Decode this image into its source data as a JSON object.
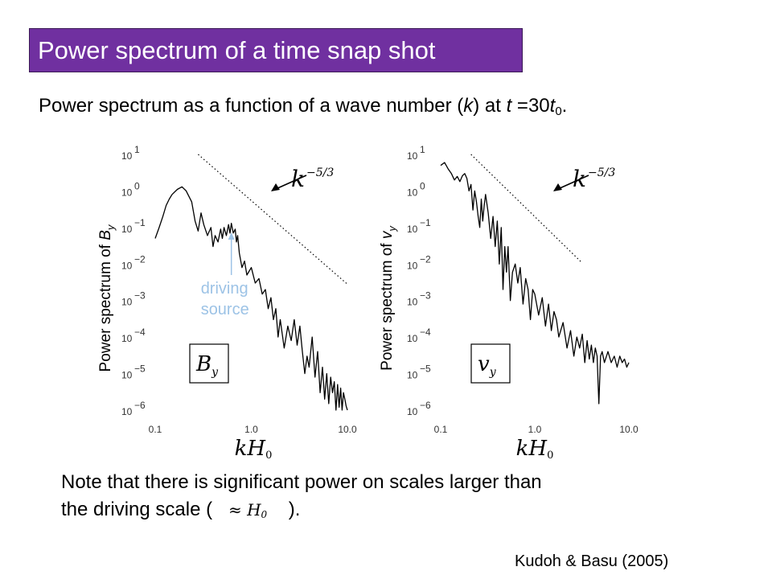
{
  "slide": {
    "title": "Power spectrum of a time snap shot",
    "subtitle": {
      "prefix": "Power spectrum as a function of a wave number (",
      "k": "k",
      "middle": ") at ",
      "t": "t",
      "eq": " =30",
      "t0": "t",
      "t0_sub": "0",
      "suffix": "."
    },
    "note": {
      "line1": "Note that there is significant power on scales larger than",
      "line2_prefix": "the driving scale (",
      "approx_symbol": "≈ H",
      "approx_sub": "0",
      "line2_suffix": " )."
    },
    "credit": "Kudoh & Basu (2005)"
  },
  "colors": {
    "title_bg": "#7030a0",
    "annotation": "#9dc3e6",
    "line": "#000000"
  },
  "chart_data": [
    {
      "type": "line",
      "xlabel": "kH0",
      "ylabel": "Power spectrum of B_y",
      "ylabel_main": "Power spectrum of ",
      "ylabel_var": "B",
      "ylabel_sub": "y",
      "x_scale": "log",
      "y_scale": "log",
      "xlim": [
        0.1,
        10
      ],
      "ylim": [
        1e-06,
        10
      ],
      "x_tick_labels": [
        "0.1",
        "1.0",
        "10.0"
      ],
      "y_tick_exponents": [
        "1",
        "0",
        "−1",
        "−2",
        "−3",
        "−4",
        "−5",
        "−6"
      ],
      "y_tick_base": "10",
      "slope_label": "k",
      "slope_exponent": "−5/3",
      "panel_label": "B",
      "panel_label_sub": "y",
      "annotation": {
        "text_line1": "driving",
        "text_line2": "source",
        "x": 0.62
      },
      "reference_line": {
        "slope": -1.6667,
        "x": [
          0.28,
          10
        ],
        "y": [
          10,
          0.0028
        ]
      },
      "series": [
        {
          "x": [
            0.1,
            0.11,
            0.12,
            0.13,
            0.14,
            0.15,
            0.17,
            0.19,
            0.21,
            0.24,
            0.26,
            0.28,
            0.3,
            0.32,
            0.35,
            0.38,
            0.4,
            0.42,
            0.45,
            0.48,
            0.5,
            0.52,
            0.55,
            0.58,
            0.6,
            0.62,
            0.65,
            0.68,
            0.7,
            0.72,
            0.75,
            0.8,
            0.85,
            0.9,
            1.0,
            1.1,
            1.2,
            1.3,
            1.4,
            1.5,
            1.6,
            1.7,
            1.8,
            1.9,
            2.0,
            2.2,
            2.4,
            2.6,
            2.8,
            3.0,
            3.2,
            3.4,
            3.6,
            3.8,
            4.0,
            4.3,
            4.6,
            4.9,
            5.2,
            5.5,
            5.8,
            6.1,
            6.4,
            6.7,
            7.0,
            7.3,
            7.6,
            7.9,
            8.2,
            8.5,
            8.8,
            9.1,
            9.4,
            9.7,
            10.0
          ],
          "y": [
            0.05,
            0.1,
            0.2,
            0.4,
            0.6,
            0.8,
            1.1,
            1.3,
            1.0,
            0.5,
            0.15,
            0.08,
            0.25,
            0.12,
            0.06,
            0.1,
            0.03,
            0.06,
            0.04,
            0.09,
            0.05,
            0.1,
            0.06,
            0.12,
            0.07,
            0.13,
            0.07,
            0.09,
            0.04,
            0.06,
            0.02,
            0.008,
            0.012,
            0.005,
            0.008,
            0.003,
            0.004,
            0.0015,
            0.002,
            0.0006,
            0.0012,
            0.0003,
            0.0006,
            0.0001,
            0.0003,
            5e-05,
            0.0002,
            8e-05,
            0.0003,
            6e-05,
            0.0002,
            4e-05,
            1e-05,
            3e-05,
            1.5e-05,
            0.0001,
            8e-06,
            4e-05,
            3e-06,
            1.5e-05,
            2e-06,
            1e-05,
            1.5e-06,
            8e-06,
            3e-06,
            6e-06,
            1e-06,
            5e-06,
            1.2e-06,
            4e-06,
            1e-06,
            3e-06,
            2e-06,
            1.3e-06,
            1e-06
          ]
        }
      ]
    },
    {
      "type": "line",
      "xlabel": "kH0",
      "ylabel": "Power spectrum of v_y",
      "ylabel_main": "Power spectrum of ",
      "ylabel_var": "v",
      "ylabel_sub": "y",
      "x_scale": "log",
      "y_scale": "log",
      "xlim": [
        0.1,
        10
      ],
      "ylim": [
        1e-06,
        10
      ],
      "x_tick_labels": [
        "0.1",
        "1.0",
        "10.0"
      ],
      "y_tick_exponents": [
        "1",
        "0",
        "−1",
        "−2",
        "−3",
        "−4",
        "−5",
        "−6"
      ],
      "y_tick_base": "10",
      "slope_label": "k",
      "slope_exponent": "−5/3",
      "panel_label": "v",
      "panel_label_sub": "y",
      "reference_line": {
        "slope": -1.6667,
        "x": [
          0.21,
          3.1
        ],
        "y": [
          10,
          0.0115
        ]
      },
      "series": [
        {
          "x": [
            0.1,
            0.11,
            0.12,
            0.13,
            0.14,
            0.15,
            0.16,
            0.17,
            0.18,
            0.19,
            0.2,
            0.21,
            0.22,
            0.23,
            0.24,
            0.25,
            0.26,
            0.27,
            0.28,
            0.29,
            0.3,
            0.32,
            0.34,
            0.36,
            0.38,
            0.4,
            0.42,
            0.44,
            0.46,
            0.48,
            0.5,
            0.52,
            0.55,
            0.58,
            0.62,
            0.66,
            0.7,
            0.75,
            0.8,
            0.85,
            0.9,
            0.95,
            1.0,
            1.1,
            1.2,
            1.3,
            1.4,
            1.5,
            1.6,
            1.7,
            1.8,
            2.0,
            2.2,
            2.4,
            2.6,
            2.8,
            3.0,
            3.2,
            3.4,
            3.6,
            3.8,
            4.0,
            4.2,
            4.4,
            4.6,
            4.8,
            5.0,
            5.2,
            5.5,
            6.0,
            6.5,
            7.0,
            7.5,
            8.0,
            8.5,
            9.0,
            9.5,
            10.0
          ],
          "y": [
            5,
            6,
            4,
            3,
            2,
            2.5,
            1.8,
            2.6,
            3,
            2.2,
            1.0,
            1.5,
            0.3,
            1.0,
            0.5,
            0.2,
            0.1,
            0.6,
            0.15,
            0.4,
            0.8,
            0.25,
            0.05,
            0.2,
            0.03,
            0.15,
            0.01,
            0.1,
            0.002,
            0.03,
            0.006,
            0.03,
            0.001,
            0.006,
            0.01,
            0.003,
            0.008,
            0.0008,
            0.004,
            0.002,
            0.0003,
            0.002,
            0.0015,
            0.0004,
            0.0012,
            0.0002,
            0.0008,
            0.00015,
            0.0005,
            0.0003,
            0.0001,
            0.00025,
            5e-05,
            0.00015,
            3e-05,
            0.0001,
            5e-05,
            0.00012,
            2e-05,
            8e-05,
            2.5e-05,
            6e-05,
            2e-05,
            5e-05,
            3e-05,
            1.5e-06,
            3e-05,
            4e-05,
            2e-05,
            4e-05,
            2e-05,
            3e-05,
            1.5e-05,
            3e-05,
            2e-05,
            2.5e-05,
            1.5e-05,
            2e-05
          ]
        }
      ]
    }
  ]
}
